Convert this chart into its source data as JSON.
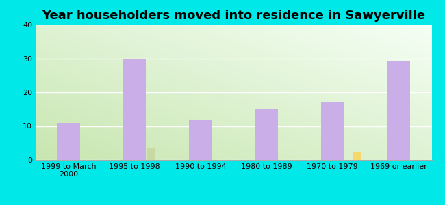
{
  "title": "Year householders moved into residence in Sawyerville",
  "categories": [
    "1999 to March\n2000",
    "1995 to 1998",
    "1990 to 1994",
    "1980 to 1989",
    "1970 to 1979",
    "1969 or earlier"
  ],
  "white_non_hispanic": [
    11,
    30,
    12,
    15,
    17,
    29
  ],
  "black": [
    0,
    3.5,
    0,
    0,
    0,
    0
  ],
  "two_or_more": [
    0,
    0,
    0,
    0,
    2.5,
    0
  ],
  "white_color": "#c9aee8",
  "black_color": "#c8d9a4",
  "two_or_more_color": "#f5d86e",
  "bg_color": "#00e8e8",
  "ylim": [
    0,
    40
  ],
  "yticks": [
    0,
    10,
    20,
    30,
    40
  ],
  "main_bar_width": 0.35,
  "small_bar_width": 0.12,
  "title_fontsize": 13,
  "tick_fontsize": 8,
  "legend_fontsize": 9
}
